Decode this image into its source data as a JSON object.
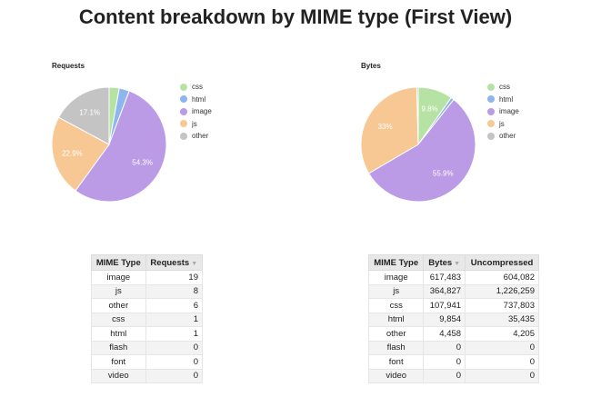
{
  "title": "Content breakdown by MIME type (First View)",
  "colors": {
    "css": "#b6e3a3",
    "html": "#8db6ee",
    "image": "#bb9ae6",
    "js": "#f7c894",
    "other": "#c4c4c4"
  },
  "chart_data": [
    {
      "type": "pie",
      "title": "Requests",
      "categories": [
        "css",
        "html",
        "image",
        "js",
        "other"
      ],
      "values": [
        1,
        1,
        19,
        8,
        6
      ],
      "labels": [
        "",
        "",
        "54.3%",
        "22.9%",
        "17.1%"
      ],
      "legend_position": "right"
    },
    {
      "type": "pie",
      "title": "Bytes",
      "categories": [
        "css",
        "html",
        "image",
        "js",
        "other"
      ],
      "values": [
        107941,
        9854,
        617483,
        364827,
        4458
      ],
      "labels": [
        "9.8%",
        "",
        "55.9%",
        "33%",
        ""
      ],
      "legend_position": "right"
    }
  ],
  "requests_table": {
    "headers": [
      "MIME Type",
      "Requests"
    ],
    "sort_indicator": "▼",
    "rows": [
      [
        "image",
        "19"
      ],
      [
        "js",
        "8"
      ],
      [
        "other",
        "6"
      ],
      [
        "css",
        "1"
      ],
      [
        "html",
        "1"
      ],
      [
        "flash",
        "0"
      ],
      [
        "font",
        "0"
      ],
      [
        "video",
        "0"
      ]
    ]
  },
  "bytes_table": {
    "headers": [
      "MIME Type",
      "Bytes",
      "Uncompressed"
    ],
    "sort_indicator": "▼",
    "rows": [
      [
        "image",
        "617,483",
        "604,082"
      ],
      [
        "js",
        "364,827",
        "1,226,259"
      ],
      [
        "css",
        "107,941",
        "737,803"
      ],
      [
        "html",
        "9,854",
        "35,435"
      ],
      [
        "other",
        "4,458",
        "4,205"
      ],
      [
        "flash",
        "0",
        "0"
      ],
      [
        "font",
        "0",
        "0"
      ],
      [
        "video",
        "0",
        "0"
      ]
    ]
  }
}
